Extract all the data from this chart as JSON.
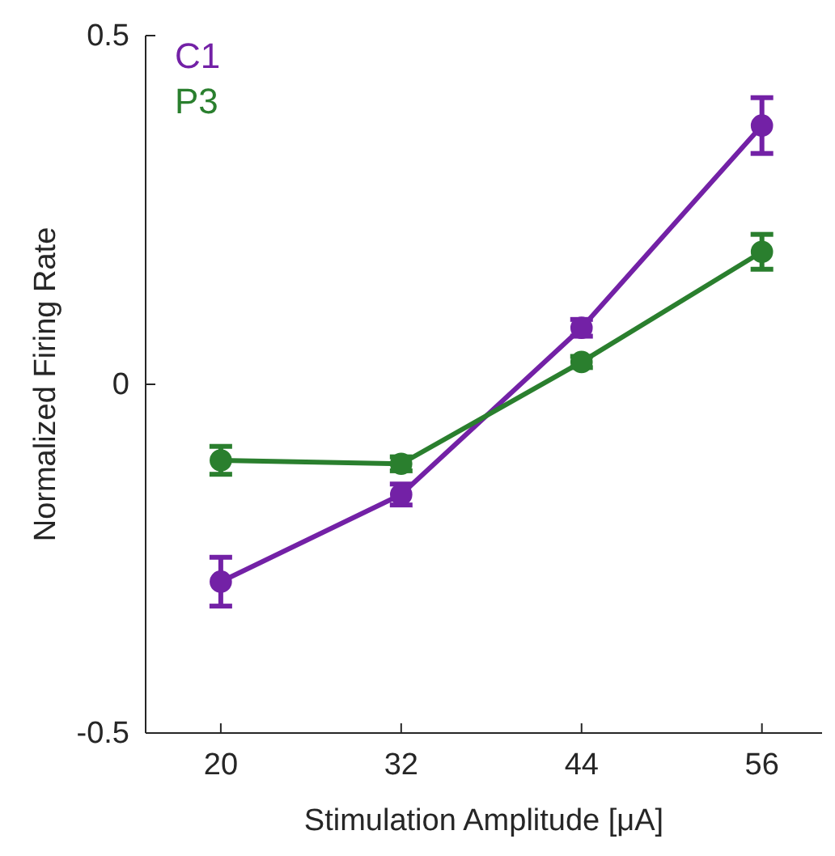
{
  "chart_data": {
    "type": "line",
    "xlabel": "Stimulation Amplitude [μA]",
    "ylabel": "Normalized Firing Rate",
    "x": [
      20,
      32,
      44,
      56
    ],
    "xlim": [
      15,
      60
    ],
    "xticks": [
      20,
      32,
      44,
      56
    ],
    "ylim": [
      -0.5,
      0.5
    ],
    "yticks": [
      -0.5,
      0,
      0.5
    ],
    "marker": "circle",
    "legend": "top left",
    "series": [
      {
        "name": "C1",
        "color": "#7321a6",
        "values": [
          -0.283,
          -0.158,
          0.081,
          0.371
        ],
        "errors": [
          0.035,
          0.015,
          0.012,
          0.04
        ]
      },
      {
        "name": "P3",
        "color": "#2a7f2e",
        "values": [
          -0.109,
          -0.114,
          0.032,
          0.19
        ],
        "errors": [
          0.02,
          0.01,
          0.008,
          0.025
        ]
      }
    ]
  }
}
